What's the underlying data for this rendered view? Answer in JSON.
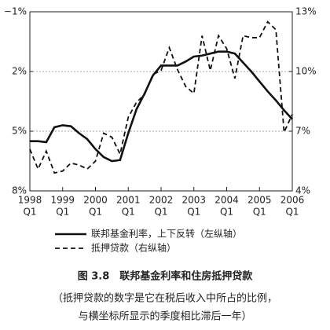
{
  "chart_data": {
    "type": "line",
    "title": "图 3.8　联邦基金利率和住房抵押贷款",
    "notes": [
      "（抵押贷款的数字是它在税后收入中所占的比例，",
      "与横坐标所显示的季度相比滞后一年）"
    ],
    "x": [
      1998,
      1998.25,
      1998.5,
      1998.75,
      1999,
      1999.25,
      1999.5,
      1999.75,
      2000,
      2000.25,
      2000.5,
      2000.75,
      2001,
      2001.25,
      2001.5,
      2001.75,
      2002,
      2002.25,
      2002.5,
      2002.75,
      2003,
      2003.25,
      2003.5,
      2003.75,
      2004,
      2004.25,
      2004.5,
      2004.75,
      2005,
      2005.25,
      2005.5,
      2005.75,
      2006
    ],
    "series": [
      {
        "name": "联邦基金利率，上下反转（左纵轴）",
        "color": "#111111",
        "linestyle": "solid",
        "axis": "y",
        "values": [
          5.5,
          5.5,
          5.55,
          4.8,
          4.7,
          4.75,
          5.1,
          5.4,
          5.9,
          6.3,
          6.5,
          6.45,
          5.1,
          3.9,
          3.1,
          2.2,
          1.7,
          1.7,
          1.7,
          1.5,
          1.25,
          1.2,
          1.1,
          1.0,
          1.0,
          1.1,
          1.55,
          2.0,
          2.5,
          3.0,
          3.45,
          3.95,
          4.4
        ]
      },
      {
        "name": "抵押贷款（右纵轴）",
        "color": "#111111",
        "linestyle": "dashed",
        "axis": "y2",
        "values": [
          6.1,
          5.1,
          6.0,
          4.9,
          5.0,
          5.4,
          5.3,
          5.1,
          5.5,
          6.9,
          6.7,
          5.85,
          7.7,
          8.45,
          8.85,
          9.85,
          10.05,
          11.2,
          10.1,
          9.25,
          8.9,
          11.8,
          10.05,
          11.8,
          11.15,
          9.65,
          11.8,
          11.7,
          11.7,
          12.5,
          12.1,
          6.95,
          7.85
        ]
      }
    ],
    "xlim": [
      1998,
      2006
    ],
    "xticks": [
      {
        "value": 1998,
        "label": [
          "1998",
          "Q1"
        ]
      },
      {
        "value": 1999,
        "label": [
          "1999",
          "Q1"
        ]
      },
      {
        "value": 2000,
        "label": [
          "2000",
          "Q1"
        ]
      },
      {
        "value": 2001,
        "label": [
          "2001",
          "Q1"
        ]
      },
      {
        "value": 2002,
        "label": [
          "2002",
          "Q1"
        ]
      },
      {
        "value": 2003,
        "label": [
          "2003",
          "Q1"
        ]
      },
      {
        "value": 2004,
        "label": [
          "2004",
          "Q1"
        ]
      },
      {
        "value": 2005,
        "label": [
          "2005",
          "Q1"
        ]
      },
      {
        "value": 2006,
        "label": [
          "2006",
          "Q1"
        ]
      }
    ],
    "ylim": [
      8,
      -1
    ],
    "yticks": [
      {
        "value": -1,
        "label": "−1%"
      },
      {
        "value": 2,
        "label": "2%"
      },
      {
        "value": 5,
        "label": "5%"
      },
      {
        "value": 8,
        "label": "8%"
      }
    ],
    "y2lim": [
      4,
      13
    ],
    "y2ticks": [
      {
        "value": 13,
        "label": "13%"
      },
      {
        "value": 10,
        "label": "10%"
      },
      {
        "value": 7,
        "label": "7%"
      },
      {
        "value": 4,
        "label": "4%"
      }
    ],
    "grid": true
  }
}
